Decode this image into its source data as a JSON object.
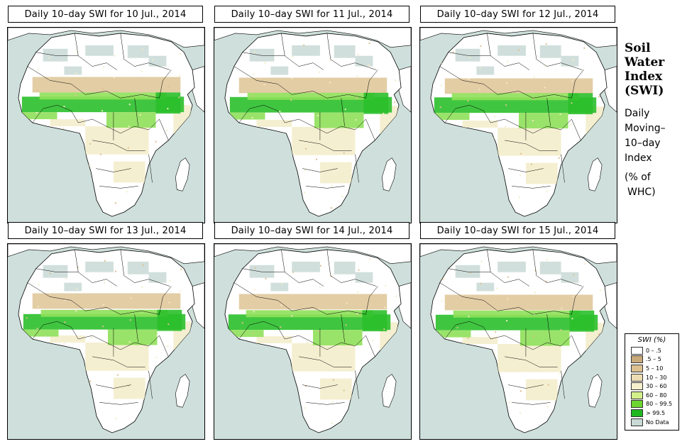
{
  "panels": [
    {
      "title": "Daily 10–day SWI for  10 Jul., 2014",
      "date": "10 Jul., 2014"
    },
    {
      "title": "Daily 10–day SWI for  11 Jul., 2014",
      "date": "11 Jul., 2014"
    },
    {
      "title": "Daily 10–day SWI for  12 Jul., 2014",
      "date": "12 Jul., 2014"
    },
    {
      "title": "Daily 10–day SWI for  13 Jul., 2014",
      "date": "13 Jul., 2014"
    },
    {
      "title": "Daily 10–day SWI for  14 Jul., 2014",
      "date": "14 Jul., 2014"
    },
    {
      "title": "Daily 10–day SWI for  15 Jul., 2014",
      "date": "15 Jul., 2014"
    }
  ],
  "side": {
    "title_line1": "Soil",
    "title_line2": "Water",
    "title_line3": "Index",
    "title_line4": "(SWI)",
    "sub_line1": "Daily",
    "sub_line2": "Moving–",
    "sub_line3": "10–day",
    "sub_line4": "Index",
    "unit_line1": "(% of",
    "unit_line2": "WHC)"
  },
  "legend": {
    "title": "SWI (%)",
    "entries": [
      {
        "label": "0 – .5",
        "color": "#ffffff"
      },
      {
        "label": ".5 – 5",
        "color": "#c9a97a"
      },
      {
        "label": "5 – 10",
        "color": "#dcc08f"
      },
      {
        "label": "10 – 30",
        "color": "#ecdcb2"
      },
      {
        "label": "30 – 60",
        "color": "#f6f0cc"
      },
      {
        "label": "60 – 80",
        "color": "#d4f08a"
      },
      {
        "label": "80 – 99.5",
        "color": "#6bd630"
      },
      {
        "label": "> 99.5",
        "color": "#1fb81f"
      },
      {
        "label": "No Data",
        "color": "#c9d9d6"
      }
    ]
  },
  "colors": {
    "ocean": "#cfe0dc",
    "land": "#ffffff",
    "sahel_green": "#2bbf2b",
    "light_green": "#8fe05a",
    "tan": "#dcc08f",
    "cream": "#f3ebc6",
    "nodata": "#c9d9d6"
  }
}
